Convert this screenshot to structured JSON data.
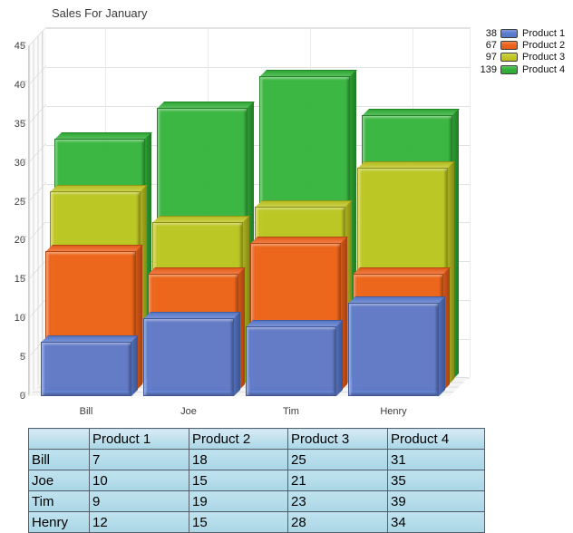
{
  "chart_data": {
    "type": "bar",
    "variant": "3d-overlapped",
    "title": "Sales For January",
    "categories": [
      "Bill",
      "Joe",
      "Tim",
      "Henry"
    ],
    "series": [
      {
        "name": "Product 1",
        "legend_total": 38,
        "color": "#5B7CD1",
        "values": [
          7,
          10,
          9,
          12
        ]
      },
      {
        "name": "Product 2",
        "legend_total": 67,
        "color": "#EF611B",
        "values": [
          18,
          15,
          19,
          15
        ]
      },
      {
        "name": "Product 3",
        "legend_total": 97,
        "color": "#C2C822",
        "values": [
          25,
          21,
          23,
          28
        ]
      },
      {
        "name": "Product 4",
        "legend_total": 139,
        "color": "#31B237",
        "values": [
          31,
          35,
          39,
          34
        ]
      }
    ],
    "ylim": [
      0,
      45
    ],
    "ytick_step": 5,
    "grid": true,
    "legend_position": "top-right"
  },
  "table": {
    "headers": [
      "",
      "Product 1",
      "Product 2",
      "Product 3",
      "Product 4"
    ],
    "rows": [
      {
        "label": "Bill",
        "values": [
          7,
          18,
          25,
          31
        ]
      },
      {
        "label": "Joe",
        "values": [
          10,
          15,
          21,
          35
        ]
      },
      {
        "label": "Tim",
        "values": [
          9,
          19,
          23,
          39
        ]
      },
      {
        "label": "Henry",
        "values": [
          12,
          15,
          28,
          34
        ]
      }
    ]
  },
  "colors": {
    "gridline": "#e3e3e3",
    "category_gridline": "#ebebeb",
    "axis_text": "#3c3c3c",
    "table_border": "#55606a",
    "table_cell_bg": "#afd9e8"
  }
}
